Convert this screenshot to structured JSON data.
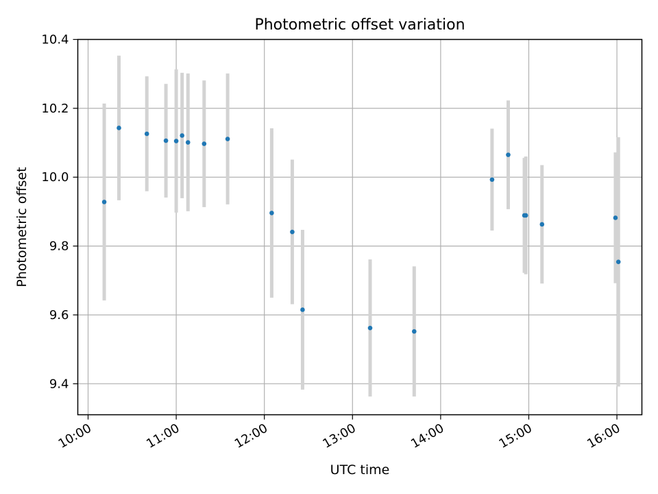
{
  "chart_data": {
    "type": "scatter",
    "title": "Photometric offset variation",
    "xlabel": "UTC time",
    "ylabel": "Photometric offset",
    "x_axis_type": "time",
    "xlim": [
      "09:53",
      "16:17"
    ],
    "ylim": [
      9.31,
      10.4
    ],
    "grid": true,
    "x_ticks": [
      "10:00",
      "11:00",
      "12:00",
      "13:00",
      "14:00",
      "15:00",
      "16:00"
    ],
    "y_ticks": [
      9.4,
      9.6,
      9.8,
      10.0,
      10.2,
      10.4
    ],
    "y_tick_labels": [
      "9.4",
      "9.6",
      "9.8",
      "10.0",
      "10.2",
      "10.4"
    ],
    "marker_color": "#1f77b4",
    "errorbar_color": "#d3d3d3",
    "points": [
      {
        "x": "10:11",
        "y": 9.928,
        "yerr": 0.286
      },
      {
        "x": "10:21",
        "y": 10.143,
        "yerr": 0.21
      },
      {
        "x": "10:40",
        "y": 10.126,
        "yerr": 0.167
      },
      {
        "x": "10:53",
        "y": 10.106,
        "yerr": 0.165
      },
      {
        "x": "11:00",
        "y": 10.105,
        "yerr": 0.208
      },
      {
        "x": "11:04",
        "y": 10.121,
        "yerr": 0.182
      },
      {
        "x": "11:08",
        "y": 10.101,
        "yerr": 0.2
      },
      {
        "x": "11:19",
        "y": 10.097,
        "yerr": 0.184
      },
      {
        "x": "11:35",
        "y": 10.111,
        "yerr": 0.19
      },
      {
        "x": "12:05",
        "y": 9.896,
        "yerr": 0.246
      },
      {
        "x": "12:19",
        "y": 9.841,
        "yerr": 0.21
      },
      {
        "x": "12:26",
        "y": 9.615,
        "yerr": 0.232
      },
      {
        "x": "13:12",
        "y": 9.562,
        "yerr": 0.199
      },
      {
        "x": "13:42",
        "y": 9.552,
        "yerr": 0.189
      },
      {
        "x": "14:35",
        "y": 9.993,
        "yerr": 0.148
      },
      {
        "x": "14:46",
        "y": 10.065,
        "yerr": 0.158
      },
      {
        "x": "14:57",
        "y": 9.889,
        "yerr": 0.167
      },
      {
        "x": "14:58",
        "y": 9.889,
        "yerr": 0.171
      },
      {
        "x": "15:09",
        "y": 9.863,
        "yerr": 0.172
      },
      {
        "x": "15:59",
        "y": 9.882,
        "yerr": 0.19
      },
      {
        "x": "16:01",
        "y": 9.754,
        "yerr": 0.362
      }
    ]
  }
}
